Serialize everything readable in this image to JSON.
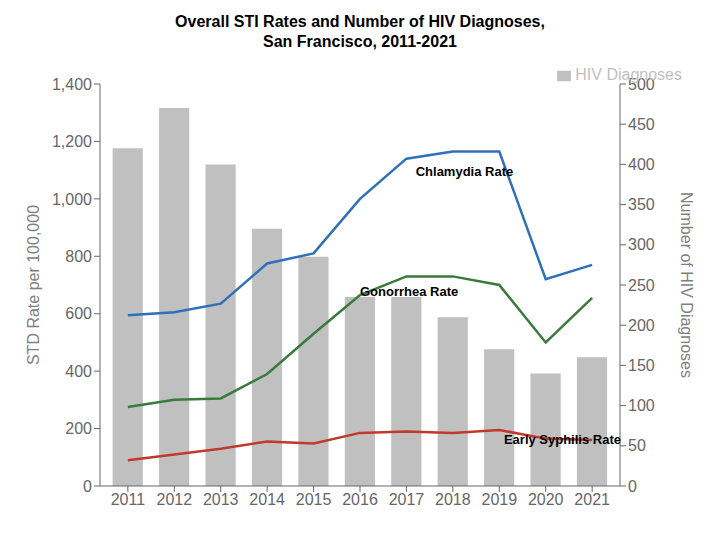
{
  "chart_data": {
    "type": "line",
    "title": "Overall STI Rates and Number of HIV Diagnoses,\nSan Francisco, 2011-2021",
    "x": [
      2011,
      2012,
      2013,
      2014,
      2015,
      2016,
      2017,
      2018,
      2019,
      2020,
      2021
    ],
    "xlim": [
      2010.4,
      2021.6
    ],
    "xticks": [
      2011,
      2012,
      2013,
      2014,
      2015,
      2016,
      2017,
      2018,
      2019,
      2020,
      2021
    ],
    "ylabel": "STD Rate per 100,000",
    "ylim": [
      0,
      1400
    ],
    "yticks": [
      0,
      200,
      400,
      600,
      800,
      {
        "value": 1000,
        "label": "1,000"
      },
      {
        "value": 1200,
        "label": "1,200"
      },
      {
        "value": 1400,
        "label": "1,400"
      }
    ],
    "y2label": "Number of HIV Diagnoses",
    "y2lim": [
      0,
      500
    ],
    "y2ticks": [
      0,
      50,
      100,
      150,
      200,
      250,
      300,
      350,
      400,
      450,
      500
    ],
    "series": [
      {
        "name": "HIV Diagnoses",
        "type": "bar",
        "axis": "y2",
        "color": "#c0c0c0",
        "values": [
          420,
          470,
          400,
          320,
          285,
          235,
          235,
          210,
          170,
          140,
          160
        ]
      },
      {
        "type": "line",
        "color": "#3070b8",
        "values": [
          595,
          605,
          635,
          775,
          810,
          1000,
          1140,
          1165,
          1165,
          720,
          770
        ]
      },
      {
        "type": "line",
        "color": "#3a7a3a",
        "values": [
          275,
          300,
          305,
          390,
          530,
          665,
          730,
          730,
          700,
          500,
          655
        ]
      },
      {
        "type": "line",
        "color": "#c0392b",
        "values": [
          90,
          110,
          130,
          155,
          148,
          185,
          190,
          185,
          195,
          165,
          160
        ]
      }
    ],
    "annotations": [
      {
        "text": "Chlamydia Rate",
        "x": 2017.2,
        "y": 1080
      },
      {
        "text": "Gonorrhea Rate",
        "x": 2016.0,
        "y": 660
      },
      {
        "text": "Early Syphilis Rate",
        "x": 2019.1,
        "y": 148
      }
    ],
    "legend": "upper right",
    "grid": false
  }
}
